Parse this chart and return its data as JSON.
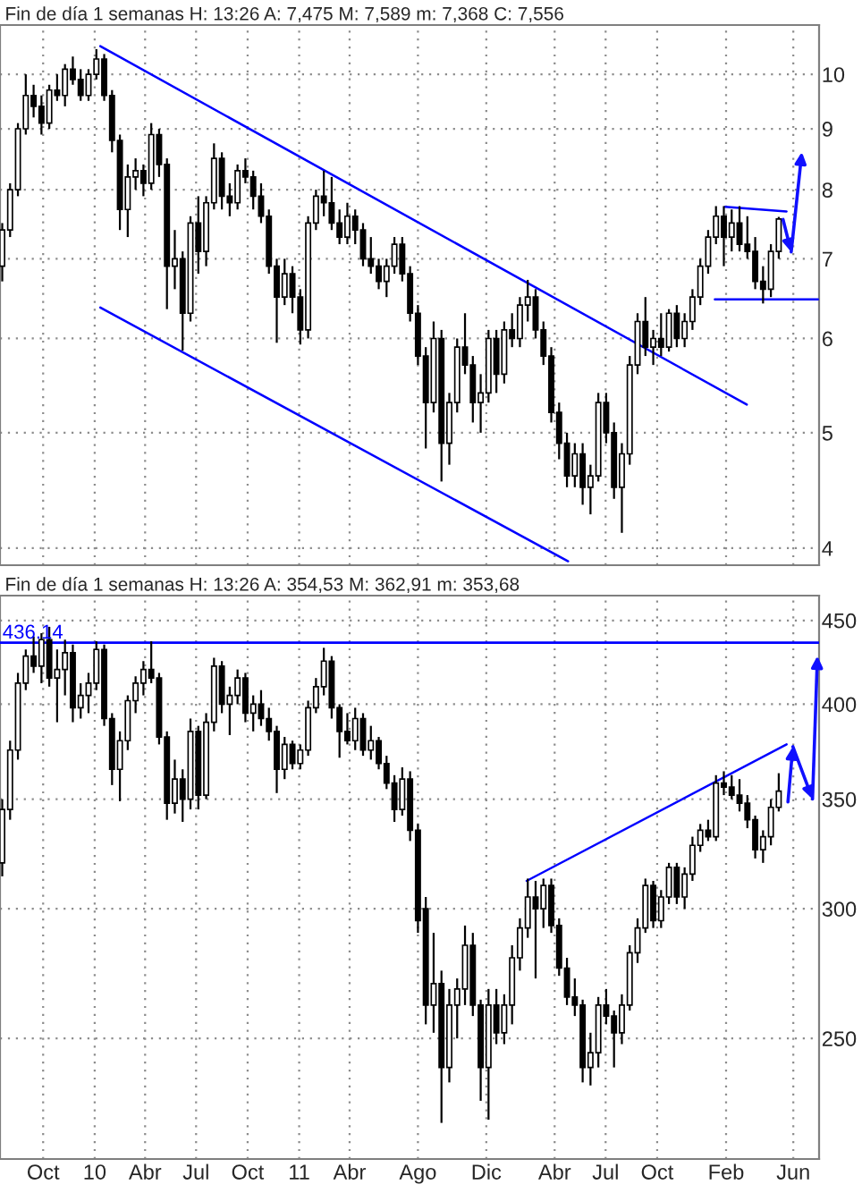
{
  "chart_data": [
    {
      "type": "candlestick",
      "title": "Fin de día 1 semanas H: 13:26 A: 7,475 M: 7,589 m: 7,368 C: 7,556",
      "x": [
        "2009-07-20",
        "2009-08-03",
        "2009-08-17",
        "2009-08-31",
        "2009-09-14",
        "2009-09-28",
        "2009-10-12",
        "2009-10-26",
        "2009-11-09",
        "2009-11-23",
        "2009-12-07",
        "2009-12-21",
        "2010-01-04",
        "2010-01-18",
        "2010-02-01",
        "2010-02-15",
        "2010-03-01",
        "2010-03-15",
        "2010-03-29",
        "2010-04-12",
        "2010-04-26",
        "2010-05-10",
        "2010-05-24",
        "2010-06-07",
        "2010-06-21",
        "2010-07-05",
        "2010-07-19",
        "2010-08-02",
        "2010-08-16",
        "2010-08-30",
        "2010-09-13",
        "2010-09-27",
        "2010-10-11",
        "2010-10-25",
        "2010-11-08",
        "2010-11-22",
        "2010-12-06",
        "2010-12-20",
        "2011-01-03",
        "2011-01-17",
        "2011-01-31",
        "2011-02-14",
        "2011-02-28",
        "2011-03-14",
        "2011-03-28",
        "2011-04-11",
        "2011-04-25",
        "2011-05-09",
        "2011-05-23",
        "2011-06-06",
        "2011-06-20",
        "2011-07-04",
        "2011-07-18",
        "2011-08-01",
        "2011-08-15",
        "2011-08-29",
        "2011-09-12",
        "2011-09-26",
        "2011-10-10",
        "2011-10-24",
        "2011-11-07",
        "2011-11-21",
        "2011-12-05",
        "2011-12-19",
        "2012-01-02",
        "2012-01-16",
        "2012-01-30",
        "2012-02-13",
        "2012-02-27",
        "2012-03-12",
        "2012-03-26",
        "2012-04-09",
        "2012-04-23",
        "2012-05-07",
        "2012-05-21",
        "2012-06-04",
        "2012-06-18",
        "2012-07-02",
        "2012-07-16",
        "2012-07-30",
        "2012-08-13",
        "2012-08-27",
        "2012-09-10",
        "2012-09-24",
        "2012-10-08",
        "2012-10-22",
        "2012-11-05",
        "2012-11-19",
        "2012-12-03",
        "2012-12-17",
        "2012-12-31",
        "2013-01-14",
        "2013-01-28",
        "2013-02-11",
        "2013-02-25",
        "2013-03-11",
        "2013-03-25",
        "2013-04-08",
        "2013-04-22",
        "2013-05-06"
      ],
      "ohlc": [
        [
          6.9,
          7.5,
          6.7,
          7.4
        ],
        [
          7.4,
          8.1,
          7.3,
          8.0
        ],
        [
          8.0,
          9.1,
          7.9,
          9.0
        ],
        [
          9.0,
          10.0,
          8.9,
          9.6
        ],
        [
          9.6,
          9.8,
          9.2,
          9.4
        ],
        [
          9.4,
          9.6,
          8.9,
          9.1
        ],
        [
          9.1,
          9.8,
          9.0,
          9.7
        ],
        [
          9.7,
          10.0,
          9.5,
          9.6
        ],
        [
          9.6,
          10.2,
          9.4,
          10.1
        ],
        [
          10.1,
          10.35,
          9.8,
          9.9
        ],
        [
          9.9,
          10.1,
          9.5,
          9.6
        ],
        [
          9.6,
          10.1,
          9.5,
          10.0
        ],
        [
          10.0,
          10.5,
          9.9,
          10.3
        ],
        [
          10.3,
          10.4,
          9.5,
          9.6
        ],
        [
          9.6,
          9.7,
          8.6,
          8.8
        ],
        [
          8.8,
          8.9,
          7.4,
          7.7
        ],
        [
          7.7,
          8.4,
          7.3,
          8.2
        ],
        [
          8.2,
          8.5,
          8.0,
          8.3
        ],
        [
          8.3,
          8.4,
          7.9,
          8.1
        ],
        [
          8.1,
          9.1,
          8.0,
          8.9
        ],
        [
          8.9,
          9.0,
          8.2,
          8.4
        ],
        [
          8.4,
          8.5,
          6.35,
          6.9
        ],
        [
          6.9,
          7.4,
          6.6,
          7.0
        ],
        [
          7.0,
          7.1,
          5.86,
          6.3
        ],
        [
          6.3,
          7.6,
          6.2,
          7.5
        ],
        [
          7.5,
          7.9,
          6.8,
          7.1
        ],
        [
          7.1,
          7.9,
          6.9,
          7.8
        ],
        [
          7.8,
          8.75,
          7.7,
          8.5
        ],
        [
          8.5,
          8.6,
          7.7,
          7.9
        ],
        [
          7.9,
          8.1,
          7.6,
          7.8
        ],
        [
          7.8,
          8.4,
          7.7,
          8.3
        ],
        [
          8.3,
          8.5,
          8.1,
          8.2
        ],
        [
          8.2,
          8.3,
          7.7,
          7.9
        ],
        [
          7.9,
          8.1,
          7.5,
          7.6
        ],
        [
          7.6,
          7.7,
          6.8,
          6.9
        ],
        [
          6.9,
          7.0,
          5.95,
          6.5
        ],
        [
          6.5,
          7.0,
          6.4,
          6.8
        ],
        [
          6.8,
          6.9,
          6.3,
          6.5
        ],
        [
          6.5,
          6.6,
          5.93,
          6.1
        ],
        [
          6.1,
          7.6,
          6.0,
          7.5
        ],
        [
          7.5,
          8.0,
          7.4,
          7.9
        ],
        [
          7.9,
          8.3,
          7.6,
          7.8
        ],
        [
          7.8,
          8.2,
          7.4,
          7.5
        ],
        [
          7.5,
          7.7,
          7.2,
          7.3
        ],
        [
          7.3,
          7.8,
          7.2,
          7.6
        ],
        [
          7.6,
          7.7,
          7.2,
          7.4
        ],
        [
          7.4,
          7.5,
          6.9,
          7.0
        ],
        [
          7.0,
          7.3,
          6.8,
          6.9
        ],
        [
          6.9,
          7.0,
          6.6,
          6.7
        ],
        [
          6.7,
          7.0,
          6.5,
          6.9
        ],
        [
          6.9,
          7.3,
          6.8,
          7.2
        ],
        [
          7.2,
          7.3,
          6.7,
          6.8
        ],
        [
          6.8,
          6.9,
          6.2,
          6.3
        ],
        [
          6.3,
          6.4,
          5.7,
          5.8
        ],
        [
          5.8,
          5.9,
          4.85,
          5.3
        ],
        [
          5.3,
          6.2,
          5.2,
          6.0
        ],
        [
          6.0,
          6.1,
          4.55,
          4.9
        ],
        [
          4.9,
          5.4,
          4.7,
          5.3
        ],
        [
          5.3,
          6.0,
          5.2,
          5.9
        ],
        [
          5.9,
          6.3,
          5.6,
          5.7
        ],
        [
          5.7,
          5.8,
          5.1,
          5.3
        ],
        [
          5.3,
          5.6,
          5.0,
          5.4
        ],
        [
          5.4,
          6.1,
          5.3,
          6.0
        ],
        [
          6.0,
          6.1,
          5.4,
          5.6
        ],
        [
          5.6,
          6.2,
          5.5,
          6.1
        ],
        [
          6.1,
          6.3,
          5.9,
          6.0
        ],
        [
          6.0,
          6.5,
          5.9,
          6.4
        ],
        [
          6.4,
          6.72,
          6.2,
          6.5
        ],
        [
          6.5,
          6.6,
          6.0,
          6.1
        ],
        [
          6.1,
          6.2,
          5.7,
          5.8
        ],
        [
          5.8,
          5.9,
          5.1,
          5.2
        ],
        [
          5.2,
          5.3,
          4.75,
          4.9
        ],
        [
          4.9,
          5.0,
          4.5,
          4.6
        ],
        [
          4.6,
          4.9,
          4.5,
          4.8
        ],
        [
          4.8,
          4.9,
          4.35,
          4.5
        ],
        [
          4.5,
          4.7,
          4.27,
          4.6
        ],
        [
          4.6,
          5.4,
          4.55,
          5.3
        ],
        [
          5.3,
          5.4,
          4.9,
          5.0
        ],
        [
          5.0,
          5.1,
          4.4,
          4.5
        ],
        [
          4.5,
          4.9,
          4.12,
          4.8
        ],
        [
          4.8,
          5.8,
          4.7,
          5.7
        ],
        [
          5.7,
          6.3,
          5.6,
          6.2
        ],
        [
          6.2,
          6.5,
          5.8,
          5.9
        ],
        [
          5.9,
          6.1,
          5.7,
          6.0
        ],
        [
          6.0,
          6.3,
          5.8,
          5.9
        ],
        [
          5.9,
          6.35,
          5.85,
          6.3
        ],
        [
          6.3,
          6.4,
          5.9,
          6.0
        ],
        [
          6.0,
          6.3,
          5.9,
          6.2
        ],
        [
          6.2,
          6.6,
          6.1,
          6.5
        ],
        [
          6.5,
          7.0,
          6.4,
          6.9
        ],
        [
          6.9,
          7.4,
          6.8,
          7.3
        ],
        [
          7.3,
          7.75,
          7.2,
          7.6
        ],
        [
          7.6,
          7.75,
          6.9,
          7.3
        ],
        [
          7.3,
          7.7,
          7.1,
          7.5
        ],
        [
          7.5,
          7.75,
          7.1,
          7.2
        ],
        [
          7.2,
          7.6,
          7.0,
          7.1
        ],
        [
          7.1,
          7.3,
          6.6,
          6.7
        ],
        [
          6.7,
          6.9,
          6.42,
          6.6
        ],
        [
          6.6,
          7.2,
          6.5,
          7.1
        ],
        [
          7.1,
          7.59,
          7.0,
          7.56
        ]
      ],
      "series": [
        {
          "type": "line",
          "x": [
            "2010-01-11",
            "2013-03-10"
          ],
          "values": [
            10.56,
            5.28
          ],
          "color": "#0000ff"
        },
        {
          "type": "line",
          "x": [
            "2010-01-11",
            "2012-04-25"
          ],
          "values": [
            6.37,
            3.9
          ],
          "color": "#0000ff"
        },
        {
          "type": "line",
          "x": [
            "2013-01-30",
            "2013-05-20"
          ],
          "values": [
            7.74,
            7.67
          ],
          "color": "#0000ff"
        },
        {
          "type": "line",
          "x": [
            "2013-01-12",
            "2013-07-15"
          ],
          "values": [
            6.47,
            6.47
          ],
          "color": "#0000ff"
        }
      ],
      "log": true,
      "xlim": [
        "2009-07-16",
        "2013-07-17"
      ],
      "ylim": [
        3.87,
        11
      ],
      "yticks": [
        4,
        5,
        6,
        7,
        8,
        9,
        10
      ],
      "xticks": [
        {
          "value": "2009-10-01",
          "label": null
        },
        {
          "value": "2010-01-01",
          "label": null
        },
        {
          "value": "2010-04-01",
          "label": null
        },
        {
          "value": "2010-07-01",
          "label": null
        },
        {
          "value": "2010-10-01",
          "label": null
        },
        {
          "value": "2011-01-01",
          "label": null
        },
        {
          "value": "2011-04-01",
          "label": null
        },
        {
          "value": "2011-08-01",
          "label": null
        },
        {
          "value": "2011-12-01",
          "label": null
        },
        {
          "value": "2012-04-01",
          "label": null
        },
        {
          "value": "2012-07-01",
          "label": null
        },
        {
          "value": "2012-10-01",
          "label": null
        },
        {
          "value": "2013-02-01",
          "label": null
        },
        {
          "value": "2013-06-01",
          "label": null
        }
      ],
      "grid": true,
      "tick_labels": "y"
    },
    {
      "type": "candlestick",
      "title": "Fin de día 1 semanas H: 13:26 A: 354,53 M: 362,91 m: 353,68",
      "x": [
        "2009-07-20",
        "2009-08-03",
        "2009-08-17",
        "2009-08-31",
        "2009-09-14",
        "2009-09-28",
        "2009-10-12",
        "2009-10-26",
        "2009-11-09",
        "2009-11-23",
        "2009-12-07",
        "2009-12-21",
        "2010-01-04",
        "2010-01-18",
        "2010-02-01",
        "2010-02-15",
        "2010-03-01",
        "2010-03-15",
        "2010-03-29",
        "2010-04-12",
        "2010-04-26",
        "2010-05-10",
        "2010-05-24",
        "2010-06-07",
        "2010-06-21",
        "2010-07-05",
        "2010-07-19",
        "2010-08-02",
        "2010-08-16",
        "2010-08-30",
        "2010-09-13",
        "2010-09-27",
        "2010-10-11",
        "2010-10-25",
        "2010-11-08",
        "2010-11-22",
        "2010-12-06",
        "2010-12-20",
        "2011-01-03",
        "2011-01-17",
        "2011-01-31",
        "2011-02-14",
        "2011-02-28",
        "2011-03-14",
        "2011-03-28",
        "2011-04-11",
        "2011-04-25",
        "2011-05-09",
        "2011-05-23",
        "2011-06-06",
        "2011-06-20",
        "2011-07-04",
        "2011-07-18",
        "2011-08-01",
        "2011-08-15",
        "2011-08-29",
        "2011-09-12",
        "2011-09-26",
        "2011-10-10",
        "2011-10-24",
        "2011-11-07",
        "2011-11-21",
        "2011-12-05",
        "2011-12-19",
        "2012-01-02",
        "2012-01-16",
        "2012-01-30",
        "2012-02-13",
        "2012-02-27",
        "2012-03-12",
        "2012-03-26",
        "2012-04-09",
        "2012-04-23",
        "2012-05-07",
        "2012-05-21",
        "2012-06-04",
        "2012-06-18",
        "2012-07-02",
        "2012-07-16",
        "2012-07-30",
        "2012-08-13",
        "2012-08-27",
        "2012-09-10",
        "2012-09-24",
        "2012-10-08",
        "2012-10-22",
        "2012-11-05",
        "2012-11-19",
        "2012-12-03",
        "2012-12-17",
        "2012-12-31",
        "2013-01-14",
        "2013-01-28",
        "2013-02-11",
        "2013-02-25",
        "2013-03-11",
        "2013-03-25",
        "2013-04-08",
        "2013-04-22",
        "2013-05-06"
      ],
      "ohlc": [
        [
          320,
          350,
          314,
          345
        ],
        [
          345,
          380,
          340,
          375
        ],
        [
          375,
          418,
          370,
          412
        ],
        [
          412,
          432,
          408,
          428
        ],
        [
          428,
          440,
          418,
          422
        ],
        [
          422,
          442,
          412,
          438
        ],
        [
          438,
          446,
          410,
          415
        ],
        [
          415,
          432,
          390,
          420
        ],
        [
          420,
          438,
          405,
          430
        ],
        [
          430,
          435,
          390,
          398
        ],
        [
          398,
          412,
          392,
          405
        ],
        [
          405,
          418,
          395,
          412
        ],
        [
          412,
          437,
          408,
          432
        ],
        [
          432,
          435,
          388,
          392
        ],
        [
          392,
          395,
          357,
          365
        ],
        [
          365,
          385,
          349,
          380
        ],
        [
          380,
          405,
          375,
          402
        ],
        [
          402,
          416,
          395,
          412
        ],
        [
          412,
          425,
          405,
          420
        ],
        [
          420,
          437,
          412,
          415
        ],
        [
          415,
          418,
          378,
          382
        ],
        [
          382,
          385,
          340,
          348
        ],
        [
          348,
          370,
          343,
          360
        ],
        [
          360,
          365,
          339,
          350
        ],
        [
          350,
          392,
          345,
          385
        ],
        [
          385,
          388,
          345,
          352
        ],
        [
          352,
          395,
          350,
          390
        ],
        [
          390,
          427,
          385,
          422
        ],
        [
          422,
          425,
          395,
          400
        ],
        [
          400,
          410,
          383,
          405
        ],
        [
          405,
          420,
          400,
          415
        ],
        [
          415,
          418,
          390,
          395
        ],
        [
          395,
          405,
          385,
          400
        ],
        [
          400,
          408,
          388,
          392
        ],
        [
          392,
          398,
          380,
          385
        ],
        [
          385,
          388,
          353,
          365
        ],
        [
          365,
          382,
          360,
          378
        ],
        [
          378,
          380,
          365,
          368
        ],
        [
          368,
          378,
          365,
          375
        ],
        [
          375,
          402,
          372,
          398
        ],
        [
          398,
          415,
          395,
          410
        ],
        [
          410,
          433,
          405,
          425
        ],
        [
          425,
          428,
          392,
          398
        ],
        [
          398,
          400,
          371,
          385
        ],
        [
          385,
          395,
          378,
          380
        ],
        [
          380,
          398,
          375,
          392
        ],
        [
          392,
          395,
          372,
          375
        ],
        [
          375,
          388,
          370,
          380
        ],
        [
          380,
          382,
          365,
          368
        ],
        [
          368,
          372,
          355,
          358
        ],
        [
          358,
          362,
          339,
          345
        ],
        [
          345,
          366,
          342,
          360
        ],
        [
          360,
          364,
          330,
          335
        ],
        [
          335,
          338,
          290,
          295
        ],
        [
          300,
          305,
          255,
          262
        ],
        [
          262,
          290,
          252,
          270
        ],
        [
          270,
          275,
          222,
          240
        ],
        [
          240,
          268,
          235,
          262
        ],
        [
          262,
          272,
          250,
          268
        ],
        [
          268,
          293,
          262,
          285
        ],
        [
          285,
          290,
          258,
          262
        ],
        [
          262,
          264,
          229,
          240
        ],
        [
          240,
          268,
          223,
          262
        ],
        [
          262,
          268,
          248,
          252
        ],
        [
          252,
          266,
          248,
          262
        ],
        [
          262,
          285,
          255,
          280
        ],
        [
          280,
          296,
          275,
          292
        ],
        [
          292,
          313,
          288,
          305
        ],
        [
          305,
          312,
          272,
          300
        ],
        [
          300,
          313,
          292,
          310
        ],
        [
          310,
          313,
          290,
          293
        ],
        [
          293,
          296,
          273,
          276
        ],
        [
          276,
          280,
          262,
          265
        ],
        [
          265,
          272,
          258,
          262
        ],
        [
          262,
          264,
          235,
          240
        ],
        [
          240,
          252,
          234,
          245
        ],
        [
          245,
          265,
          240,
          262
        ],
        [
          262,
          268,
          255,
          258
        ],
        [
          258,
          260,
          240,
          252
        ],
        [
          252,
          266,
          248,
          262
        ],
        [
          262,
          285,
          260,
          282
        ],
        [
          282,
          296,
          278,
          292
        ],
        [
          292,
          313,
          290,
          310
        ],
        [
          310,
          312,
          292,
          295
        ],
        [
          295,
          308,
          292,
          305
        ],
        [
          305,
          320,
          302,
          318
        ],
        [
          318,
          320,
          302,
          305
        ],
        [
          305,
          318,
          300,
          315
        ],
        [
          315,
          332,
          312,
          328
        ],
        [
          328,
          338,
          325,
          335
        ],
        [
          335,
          340,
          330,
          332
        ],
        [
          332,
          362,
          330,
          358
        ],
        [
          358,
          364,
          352,
          356
        ],
        [
          356,
          362,
          350,
          352
        ],
        [
          352,
          360,
          344,
          348
        ],
        [
          348,
          352,
          336,
          340
        ],
        [
          340,
          342,
          322,
          326
        ],
        [
          326,
          335,
          320,
          332
        ],
        [
          332,
          350,
          328,
          346
        ],
        [
          346,
          363,
          344,
          354
        ]
      ],
      "series": [
        {
          "type": "line",
          "x": [
            "2012-02-11",
            "2013-05-20"
          ],
          "values": [
            312,
            378
          ],
          "color": "#0000ff"
        }
      ],
      "ref_lines": [
        {
          "axis": "y",
          "value": 436.14,
          "label": "436.14",
          "color": "#0000ff"
        }
      ],
      "log": true,
      "xlim": [
        "2009-07-16",
        "2013-07-17"
      ],
      "ylim": [
        211,
        466
      ],
      "yticks": [
        250,
        300,
        350,
        400,
        450
      ],
      "xticks": [
        {
          "value": "2009-10-01",
          "label": "Oct"
        },
        {
          "value": "2010-01-01",
          "label": "10"
        },
        {
          "value": "2010-04-01",
          "label": "Abr"
        },
        {
          "value": "2010-07-01",
          "label": "Jul"
        },
        {
          "value": "2010-10-01",
          "label": "Oct"
        },
        {
          "value": "2011-01-01",
          "label": "11"
        },
        {
          "value": "2011-04-01",
          "label": "Abr"
        },
        {
          "value": "2011-08-01",
          "label": "Ago"
        },
        {
          "value": "2011-12-01",
          "label": "Dic"
        },
        {
          "value": "2012-04-01",
          "label": "Abr"
        },
        {
          "value": "2012-07-01",
          "label": "Jul"
        },
        {
          "value": "2012-10-01",
          "label": "Oct"
        },
        {
          "value": "2013-02-01",
          "label": "Feb"
        },
        {
          "value": "2013-06-01",
          "label": "Jun"
        }
      ],
      "grid": true
    }
  ]
}
